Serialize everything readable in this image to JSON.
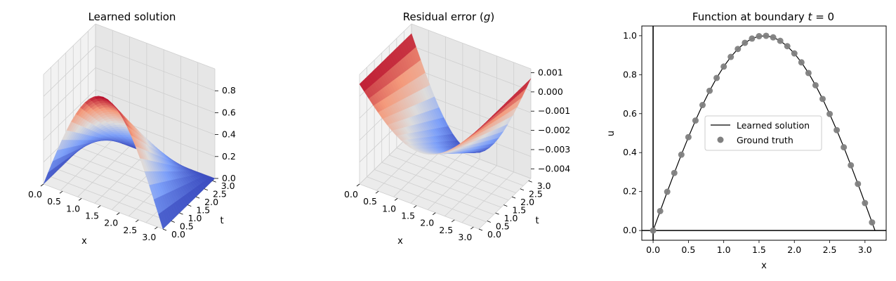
{
  "chart_data": [
    {
      "type": "surface",
      "title": "Learned solution",
      "xlabel": "x",
      "ylabel": "t",
      "colormap": "coolwarm",
      "x_ticks": [
        "0.0",
        "0.5",
        "1.0",
        "1.5",
        "2.0",
        "2.5",
        "3.0"
      ],
      "t_ticks": [
        "0.0",
        "0.5",
        "1.0",
        "1.5",
        "2.0",
        "2.5",
        "3.0"
      ],
      "z_ticks": [
        "0.0",
        "0.2",
        "0.4",
        "0.6",
        "0.8"
      ],
      "zlim": [
        0,
        1
      ],
      "grid": true,
      "series": [
        {
          "x": [
            0.0,
            0.393,
            0.785,
            1.178,
            1.571,
            1.963,
            2.356,
            2.749,
            3.142
          ],
          "t_at_0": [
            0.0,
            0.383,
            0.707,
            0.924,
            1.0,
            0.924,
            0.707,
            0.383,
            0.0
          ],
          "t_at_3.14": [
            0.0,
            0.0,
            0.0,
            0.0,
            0.0,
            0.0,
            0.0,
            0.0,
            0.0
          ]
        }
      ]
    },
    {
      "type": "surface",
      "title": "Residual error (g)",
      "xlabel": "x",
      "ylabel": "t",
      "colormap": "coolwarm",
      "x_ticks": [
        "0.0",
        "0.5",
        "1.0",
        "1.5",
        "2.0",
        "2.5",
        "3.0"
      ],
      "t_ticks": [
        "0.0",
        "0.5",
        "1.0",
        "1.5",
        "2.0",
        "2.5",
        "3.0"
      ],
      "z_ticks": [
        "0.001",
        "0.000",
        "−0.001",
        "−0.002",
        "−0.003",
        "−0.004"
      ],
      "zlim": [
        -0.0045,
        0.0012
      ],
      "grid": true
    },
    {
      "type": "line",
      "title": "Function at boundary t = 0",
      "xlabel": "x",
      "ylabel": "u",
      "xlim": [
        -0.16,
        3.3
      ],
      "ylim": [
        -0.05,
        1.05
      ],
      "x_ticks": [
        "0.0",
        "0.5",
        "1.0",
        "1.5",
        "2.0",
        "2.5",
        "3.0"
      ],
      "y_ticks": [
        "0.0",
        "0.2",
        "0.4",
        "0.6",
        "0.8",
        "1.0"
      ],
      "legend_position": "center",
      "series": [
        {
          "name": "Learned solution",
          "kind": "line",
          "color": "#000000",
          "x": [
            0.0,
            0.1,
            0.2,
            0.3,
            0.4,
            0.5,
            0.6,
            0.7,
            0.8,
            0.9,
            1.0,
            1.1,
            1.2,
            1.3,
            1.4,
            1.5,
            1.6,
            1.7,
            1.8,
            1.9,
            2.0,
            2.1,
            2.2,
            2.3,
            2.4,
            2.5,
            2.6,
            2.7,
            2.8,
            2.9,
            3.0,
            3.1,
            3.1416
          ],
          "y": [
            0.0,
            0.0998,
            0.1987,
            0.2955,
            0.3894,
            0.4794,
            0.5646,
            0.6442,
            0.7174,
            0.7833,
            0.8415,
            0.8912,
            0.932,
            0.9636,
            0.9854,
            0.9975,
            0.9996,
            0.9917,
            0.9738,
            0.9463,
            0.9093,
            0.8632,
            0.8085,
            0.7457,
            0.6755,
            0.5985,
            0.5155,
            0.4274,
            0.335,
            0.2392,
            0.1411,
            0.0416,
            0.0
          ]
        },
        {
          "name": "Ground truth",
          "kind": "scatter",
          "color": "#808080",
          "x": [
            0.0,
            0.1,
            0.2,
            0.3,
            0.4,
            0.5,
            0.6,
            0.7,
            0.8,
            0.9,
            1.0,
            1.1,
            1.2,
            1.3,
            1.4,
            1.5,
            1.6,
            1.7,
            1.8,
            1.9,
            2.0,
            2.1,
            2.2,
            2.3,
            2.4,
            2.5,
            2.6,
            2.7,
            2.8,
            2.9,
            3.0,
            3.1
          ],
          "y": [
            0.0,
            0.0998,
            0.1987,
            0.2955,
            0.3894,
            0.4794,
            0.5646,
            0.6442,
            0.7174,
            0.7833,
            0.8415,
            0.8912,
            0.932,
            0.9636,
            0.9854,
            0.9975,
            0.9996,
            0.9917,
            0.9738,
            0.9463,
            0.9093,
            0.8632,
            0.8085,
            0.7457,
            0.6755,
            0.5985,
            0.5155,
            0.4274,
            0.335,
            0.2392,
            0.1411,
            0.0416
          ]
        }
      ]
    }
  ],
  "titles": {
    "plot1": "Learned solution",
    "plot2_text": "Residual error (",
    "plot2_var": "g",
    "plot2_close": ")",
    "plot3_text": "Function at boundary ",
    "plot3_var": "t",
    "plot3_eq": " = 0"
  },
  "colors": {
    "pane_left": "#f2f2f2",
    "pane_right": "#e6e6e6",
    "pane_floor": "#ebebeb",
    "grid": "#cfcfcf",
    "hot": "#b40426",
    "cold": "#3b4cc0",
    "mid": "#dddcdc"
  }
}
